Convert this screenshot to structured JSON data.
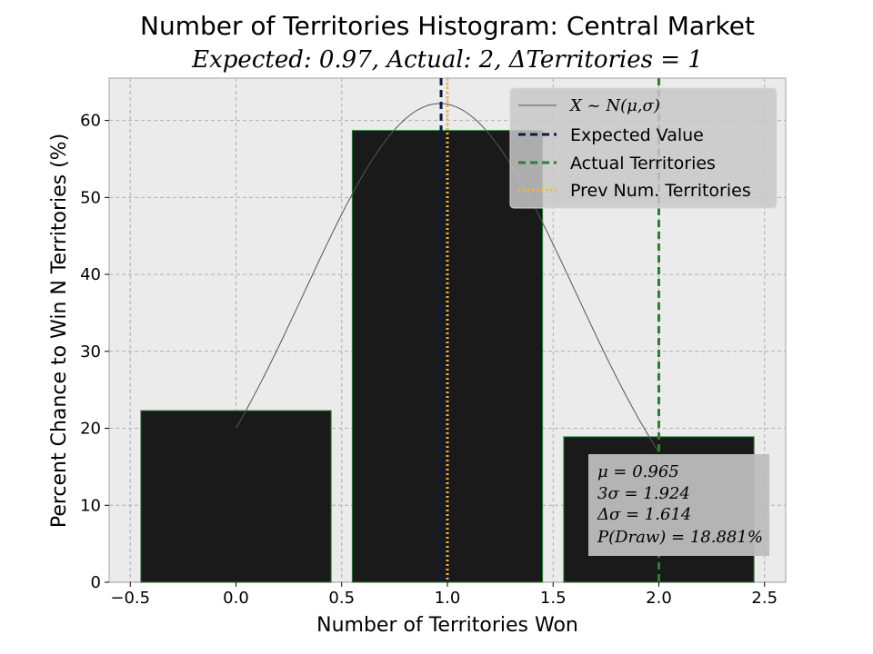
{
  "chart_data": {
    "type": "bar",
    "title": "Number of Territories Histogram: Central Market",
    "subtitle": "Expected: 0.97, Actual: 2, ΔTerritories = 1",
    "xlabel": "Number of Territories Won",
    "ylabel": "Percent Chance to Win N Territories (%)",
    "xlim": [
      -0.6,
      2.6
    ],
    "ylim": [
      0,
      65.5
    ],
    "xticks": [
      -0.5,
      0.0,
      0.5,
      1.0,
      1.5,
      2.0,
      2.5
    ],
    "xtick_labels": [
      "−0.5",
      "0.0",
      "0.5",
      "1.0",
      "1.5",
      "2.0",
      "2.5"
    ],
    "yticks": [
      0,
      10,
      20,
      30,
      40,
      50,
      60
    ],
    "ytick_labels": [
      "0",
      "10",
      "20",
      "30",
      "40",
      "50",
      "60"
    ],
    "grid": true,
    "bars": {
      "x": [
        0,
        1,
        2
      ],
      "values": [
        22.3,
        58.7,
        18.9
      ],
      "width": 0.9,
      "color": "#1a1a1a",
      "edgecolor": "#2e7d32"
    },
    "normal_curve": {
      "name": "X ~ N(μ,σ)",
      "mu": 0.965,
      "sigma": 0.641,
      "peak": 62.2,
      "x_range": [
        0,
        2
      ],
      "color": "#555555"
    },
    "vlines": [
      {
        "name": "Expected Value",
        "x": 0.97,
        "color": "#0d1b3e",
        "style": "dashed"
      },
      {
        "name": "Actual Territories",
        "x": 2,
        "color": "#2e7d32",
        "style": "dashed"
      },
      {
        "name": "Prev Num. Territories",
        "x": 1,
        "color": "#f9b233",
        "style": "dotted"
      }
    ],
    "legend": {
      "placement": "top-right",
      "entries": [
        "X ~ N(μ,σ)",
        "Expected Value",
        "Actual Territories",
        "Prev Num. Territories"
      ]
    },
    "stats_box": {
      "placement": "lower-right",
      "lines": [
        "μ = 0.965",
        "3σ = 1.924",
        "Δσ = 1.614",
        "P(Draw) = 18.881%"
      ]
    },
    "colors": {
      "plot_bg": "#ebebeb",
      "grid": "#b0b0b0",
      "stats_bg": "#bdbdbd"
    }
  }
}
